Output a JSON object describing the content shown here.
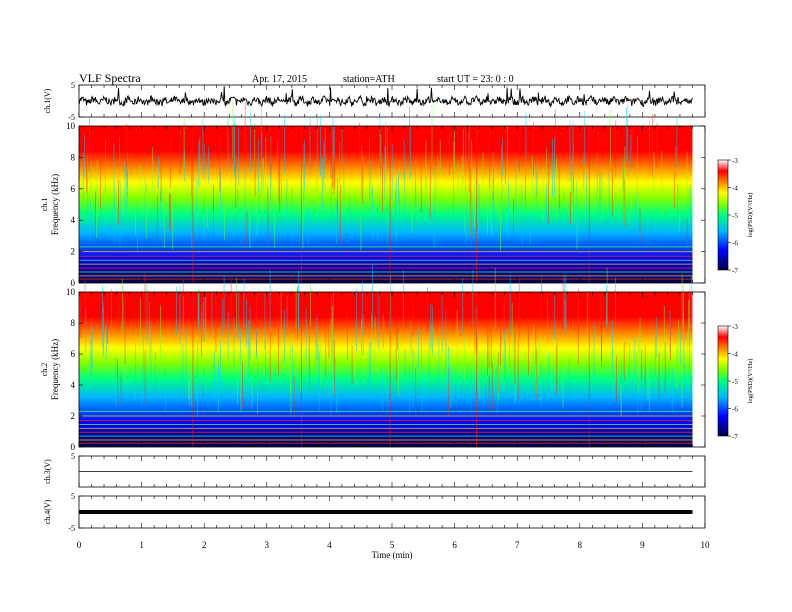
{
  "header": {
    "title": "VLF  Spectra",
    "date": "Apr. 17, 2015",
    "station": "station=ATH",
    "start": "start  UT  =   23: 0  : 0"
  },
  "colors": {
    "spectrum_scale": [
      "#00004a",
      "#0000ff",
      "#00b4ff",
      "#00ff80",
      "#80ff00",
      "#ffff00",
      "#ff8000",
      "#ff0000",
      "#ffffff"
    ],
    "trace": "#000000",
    "frame": "#000000"
  },
  "chart_data": [
    {
      "type": "line",
      "panel": "ch1-waveform",
      "ylabel": "ch.1(V)",
      "ylim": [
        -5,
        5
      ],
      "yticks": [
        "5",
        "-5"
      ],
      "baseline": 0
    },
    {
      "type": "heatmap",
      "panel": "ch1-spectrogram",
      "ylabel": [
        "ch.1",
        "Frequency  (kHz)"
      ],
      "ylim": [
        0,
        10
      ],
      "yticks": [
        "0",
        "2",
        "4",
        "6",
        "8",
        "10"
      ],
      "xlim": [
        0,
        10
      ],
      "colorbar": {
        "label": "log(PSD)(V²/Hz)",
        "ticks": [
          "-3",
          "-4",
          "-5",
          "-6",
          "-7"
        ],
        "range": [
          -7,
          -3
        ]
      }
    },
    {
      "type": "heatmap",
      "panel": "ch2-spectrogram",
      "ylabel": [
        "ch.2",
        "Frequency  (kHz)"
      ],
      "ylim": [
        0,
        10
      ],
      "yticks": [
        "0",
        "2",
        "4",
        "6",
        "8",
        "10"
      ],
      "xlim": [
        0,
        10
      ],
      "colorbar": {
        "label": "log(PSD)(V²/Hz)",
        "ticks": [
          "-3",
          "-4",
          "-5",
          "-6",
          "-7"
        ],
        "range": [
          -7,
          -3
        ]
      }
    },
    {
      "type": "line",
      "panel": "ch3-waveform",
      "ylabel": "ch.3(V)",
      "ylim": [
        -5,
        5
      ],
      "yticks": [
        "5"
      ],
      "baseline": 0
    },
    {
      "type": "line",
      "panel": "ch4-waveform",
      "ylabel": "ch.4(V)",
      "ylim": [
        -5,
        5
      ],
      "yticks": [
        "5",
        "-5"
      ],
      "baseline": 0
    }
  ],
  "x_axis": {
    "label": "Time  (min)",
    "range": [
      0,
      9.8
    ],
    "ticks": [
      "0",
      "1",
      "2",
      "3",
      "4",
      "5",
      "6",
      "7",
      "8",
      "9",
      "10"
    ]
  }
}
